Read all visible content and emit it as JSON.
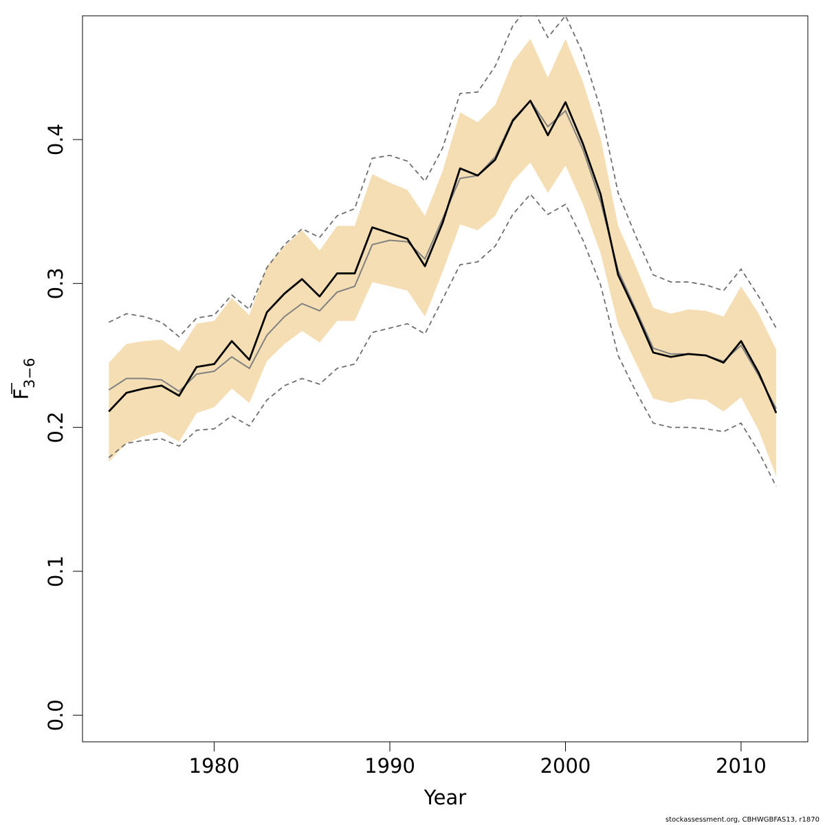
{
  "chart_data": {
    "type": "line",
    "xlabel": "Year",
    "ylabel": {
      "main": "F",
      "subscript": "3−6"
    },
    "xlim": [
      1972.5,
      2013.8
    ],
    "ylim": [
      -0.0185,
      0.486
    ],
    "xticks": [
      1980,
      1990,
      2000,
      2010
    ],
    "yticks": [
      0.0,
      0.1,
      0.2,
      0.3,
      0.4
    ],
    "ytick_labels": [
      "0.0",
      "0.1",
      "0.2",
      "0.3",
      "0.4"
    ],
    "grid": false,
    "legend": "none",
    "x": [
      1974,
      1975,
      1976,
      1977,
      1978,
      1979,
      1980,
      1981,
      1982,
      1983,
      1984,
      1985,
      1986,
      1987,
      1988,
      1989,
      1990,
      1991,
      1992,
      1993,
      1994,
      1995,
      1996,
      1997,
      1998,
      1999,
      2000,
      2001,
      2002,
      2003,
      2004,
      2005,
      2006,
      2007,
      2008,
      2009,
      2010,
      2011,
      2012
    ],
    "series": [
      {
        "role": "estimate",
        "color": "#000000",
        "values": [
          0.211,
          0.224,
          0.227,
          0.229,
          0.222,
          0.242,
          0.244,
          0.26,
          0.247,
          0.28,
          0.293,
          0.303,
          0.291,
          0.307,
          0.307,
          0.339,
          0.335,
          0.331,
          0.312,
          0.342,
          0.38,
          0.375,
          0.386,
          0.413,
          0.427,
          0.403,
          0.426,
          0.397,
          0.362,
          0.306,
          0.28,
          0.252,
          0.249,
          0.251,
          0.25,
          0.245,
          0.26,
          0.238,
          0.21
        ]
      },
      {
        "role": "median",
        "color": "#808080",
        "values": [
          0.226,
          0.234,
          0.234,
          0.233,
          0.225,
          0.237,
          0.239,
          0.249,
          0.241,
          0.264,
          0.277,
          0.286,
          0.281,
          0.294,
          0.298,
          0.327,
          0.33,
          0.329,
          0.317,
          0.345,
          0.373,
          0.375,
          0.388,
          0.414,
          0.427,
          0.409,
          0.42,
          0.393,
          0.357,
          0.309,
          0.282,
          0.255,
          0.251,
          0.251,
          0.25,
          0.246,
          0.257,
          0.236,
          0.213
        ]
      }
    ],
    "band": {
      "color": "#f5deb3",
      "lower": [
        0.176,
        0.189,
        0.194,
        0.197,
        0.19,
        0.21,
        0.214,
        0.227,
        0.217,
        0.246,
        0.258,
        0.267,
        0.259,
        0.274,
        0.274,
        0.301,
        0.298,
        0.295,
        0.277,
        0.308,
        0.341,
        0.337,
        0.347,
        0.371,
        0.384,
        0.363,
        0.382,
        0.355,
        0.321,
        0.271,
        0.245,
        0.22,
        0.217,
        0.22,
        0.219,
        0.211,
        0.221,
        0.198,
        0.166
      ],
      "upper": [
        0.245,
        0.258,
        0.26,
        0.261,
        0.253,
        0.272,
        0.274,
        0.29,
        0.278,
        0.312,
        0.326,
        0.337,
        0.323,
        0.34,
        0.34,
        0.376,
        0.37,
        0.365,
        0.347,
        0.378,
        0.419,
        0.412,
        0.424,
        0.454,
        0.47,
        0.443,
        0.47,
        0.44,
        0.401,
        0.34,
        0.312,
        0.283,
        0.279,
        0.282,
        0.281,
        0.277,
        0.298,
        0.279,
        0.254
      ]
    },
    "dashed_bounds": {
      "color": "#6e6e6e",
      "lower": [
        0.179,
        0.189,
        0.191,
        0.192,
        0.187,
        0.198,
        0.199,
        0.208,
        0.201,
        0.219,
        0.229,
        0.234,
        0.23,
        0.241,
        0.244,
        0.266,
        0.269,
        0.272,
        0.265,
        0.289,
        0.313,
        0.315,
        0.326,
        0.348,
        0.362,
        0.348,
        0.355,
        0.33,
        0.299,
        0.25,
        0.225,
        0.203,
        0.2,
        0.2,
        0.199,
        0.197,
        0.203,
        0.183,
        0.159
      ],
      "upper": [
        0.273,
        0.279,
        0.277,
        0.273,
        0.263,
        0.276,
        0.278,
        0.292,
        0.282,
        0.311,
        0.327,
        0.338,
        0.332,
        0.347,
        0.352,
        0.387,
        0.389,
        0.385,
        0.371,
        0.394,
        0.432,
        0.433,
        0.451,
        0.479,
        0.494,
        0.471,
        0.486,
        0.46,
        0.421,
        0.363,
        0.333,
        0.306,
        0.301,
        0.301,
        0.299,
        0.295,
        0.31,
        0.291,
        0.269
      ]
    }
  },
  "footer": "stockassessment.org, CBHWGBFAS13, r1870"
}
